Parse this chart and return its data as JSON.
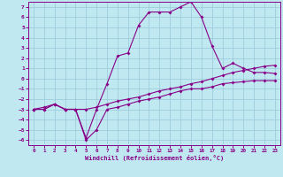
{
  "xlabel": "Windchill (Refroidissement éolien,°C)",
  "background_color": "#c0e8f0",
  "grid_color": "#98c8d8",
  "line_color": "#880088",
  "xlim": [
    -0.5,
    23.5
  ],
  "ylim": [
    -6.5,
    7.5
  ],
  "xticks": [
    0,
    1,
    2,
    3,
    4,
    5,
    6,
    7,
    8,
    9,
    10,
    11,
    12,
    13,
    14,
    15,
    16,
    17,
    18,
    19,
    20,
    21,
    22,
    23
  ],
  "yticks": [
    -6,
    -5,
    -4,
    -3,
    -2,
    -1,
    0,
    1,
    2,
    3,
    4,
    5,
    6,
    7
  ],
  "line1_x": [
    0,
    1,
    2,
    3,
    4,
    5,
    6,
    7,
    8,
    9,
    10,
    11,
    12,
    13,
    14,
    15,
    16,
    17,
    18,
    19,
    20,
    21,
    22,
    23
  ],
  "line1_y": [
    -3,
    -3,
    -2.5,
    -3,
    -3,
    -6,
    -5,
    -3,
    -2.8,
    -2.5,
    -2.2,
    -2,
    -1.8,
    -1.5,
    -1.2,
    -1,
    -1,
    -0.8,
    -0.5,
    -0.4,
    -0.3,
    -0.2,
    -0.2,
    -0.2
  ],
  "line2_x": [
    0,
    1,
    2,
    3,
    4,
    5,
    6,
    7,
    8,
    9,
    10,
    11,
    12,
    13,
    14,
    15,
    16,
    17,
    18,
    19,
    20,
    21,
    22,
    23
  ],
  "line2_y": [
    -3,
    -3,
    -2.5,
    -3,
    -3,
    -5.8,
    -3,
    -0.5,
    2.2,
    2.5,
    5.2,
    6.5,
    6.5,
    6.5,
    7,
    7.5,
    6,
    3.2,
    1,
    1.5,
    1,
    0.6,
    0.6,
    0.5
  ],
  "line3_x": [
    0,
    1,
    2,
    3,
    4,
    5,
    6,
    7,
    8,
    9,
    10,
    11,
    12,
    13,
    14,
    15,
    16,
    17,
    18,
    19,
    20,
    21,
    22,
    23
  ],
  "line3_y": [
    -3,
    -2.8,
    -2.5,
    -3,
    -3,
    -3,
    -2.8,
    -2.5,
    -2.2,
    -2,
    -1.8,
    -1.5,
    -1.2,
    -1,
    -0.8,
    -0.5,
    -0.3,
    0,
    0.3,
    0.6,
    0.8,
    1.0,
    1.2,
    1.3
  ]
}
